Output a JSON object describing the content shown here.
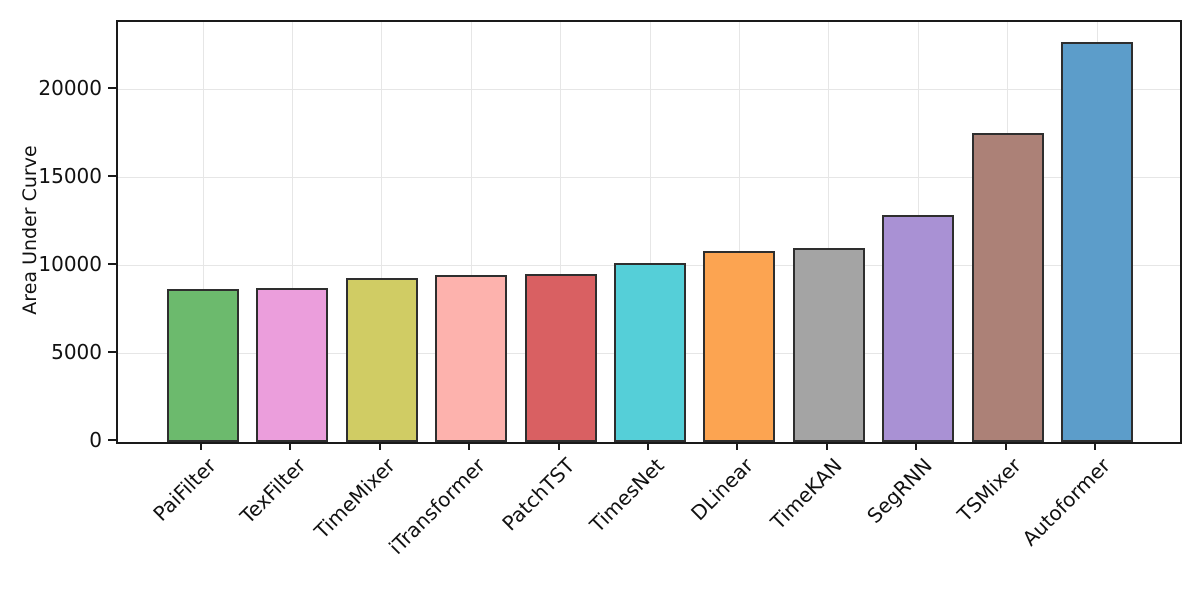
{
  "figure": {
    "background_color": "#ffffff",
    "spine_color": "#1a1a1a",
    "tick_label_color": "#111111"
  },
  "chart_data": {
    "type": "bar",
    "title": "",
    "xlabel": "",
    "ylabel": "Area Under Curve",
    "categories": [
      "PaiFilter",
      "TexFilter",
      "TimeMixer",
      "iTransformer",
      "PatchTST",
      "TimesNet",
      "DLinear",
      "TimeKAN",
      "SegRNN",
      "TSMixer",
      "Autoformer"
    ],
    "values": [
      8700,
      8760,
      9330,
      9500,
      9560,
      10170,
      10830,
      11020,
      12880,
      17530,
      22720
    ],
    "bar_colors": [
      "#6cba6d",
      "#eb9edc",
      "#d0cc64",
      "#fdb2ad",
      "#d96062",
      "#55cfd8",
      "#fca451",
      "#a4a4a4",
      "#a991d4",
      "#ac8177",
      "#5c9dca"
    ],
    "bar_edge_color": "#2e2e2e",
    "ylim": [
      0,
      23850
    ],
    "yticks": [
      0,
      5000,
      10000,
      15000,
      20000
    ],
    "ytick_labels": [
      "0",
      "5000",
      "10000",
      "15000",
      "20000"
    ],
    "grid": true,
    "grid_color": "#e6e6e6",
    "x_tick_rotation_deg": 45,
    "legend": "none"
  }
}
